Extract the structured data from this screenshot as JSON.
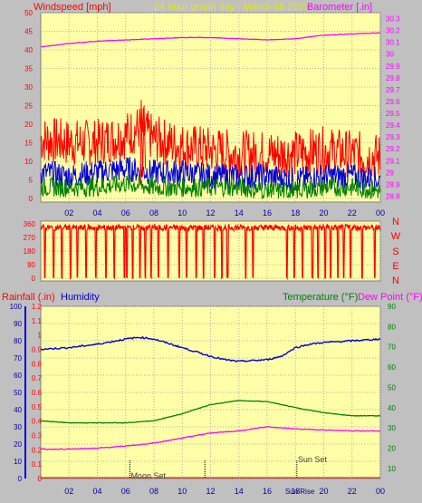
{
  "colors": {
    "background": "#c0c0c0",
    "plot_bg": "#ffffa8",
    "red": "#ff0000",
    "blue": "#0000dd",
    "green": "#008000",
    "magenta": "#ff00ff",
    "yellow_title": "#e8e800",
    "navy": "#0000a0",
    "black": "#000000"
  },
  "header": {
    "left_title": "Windspeed [mph]",
    "center_title": "24 hour graph day : March 08 2023",
    "right_title": "Barometer [.in]"
  },
  "middle": {
    "direction_labels": [
      "N",
      "W",
      "S",
      "E",
      "N"
    ]
  },
  "lower": {
    "rainfall_label": "Rainfall (.in)",
    "humidity_label": "Humidity",
    "temperature_label": "Temperature (°F)",
    "dewpoint_label": "Dew Point (°F)",
    "events": [
      {
        "label": "Moon Set",
        "hour": 6.3
      },
      {
        "label": "Sun Set",
        "hour": 18.1
      },
      {
        "label": "",
        "hour": 11.6
      }
    ],
    "sunrise_label": "Sun Rise"
  },
  "x_ticks": [
    "02",
    "04",
    "06",
    "08",
    "10",
    "12",
    "14",
    "16",
    "18",
    "20",
    "22",
    "00"
  ],
  "chart_data": [
    {
      "type": "line",
      "name": "wind-and-barometer",
      "x_range_hours": [
        0,
        24
      ],
      "y_left_ticks": [
        "0",
        "5",
        "10",
        "15",
        "20",
        "25",
        "30",
        "35",
        "40",
        "45",
        "50"
      ],
      "y_left_range": [
        0,
        50
      ],
      "y_right_ticks": [
        "28.8",
        "28.9",
        "29",
        "29.1",
        "29.2",
        "29.3",
        "29.4",
        "29.5",
        "29.6",
        "29.7",
        "29.8",
        "29.9",
        "30",
        "30.1",
        "30.2",
        "30.3"
      ],
      "y_right_range": [
        28.75,
        30.35
      ],
      "grid": true,
      "series": [
        {
          "name": "Windspeed [mph]",
          "color": "#ff0000",
          "axis": "left",
          "x": [
            0,
            2,
            4,
            6,
            7,
            8,
            10,
            12,
            14,
            16,
            18,
            20,
            22,
            24
          ],
          "values": [
            16,
            15,
            15,
            17,
            19,
            16,
            14,
            13,
            12,
            12,
            12,
            13,
            12,
            11
          ]
        },
        {
          "color": "#0000dd",
          "axis": "left",
          "x": [
            0,
            2,
            4,
            6,
            8,
            10,
            12,
            14,
            16,
            18,
            20,
            22,
            24
          ],
          "values": [
            7,
            6,
            7,
            8,
            7,
            7,
            6,
            6,
            6,
            5,
            6,
            6,
            5
          ]
        },
        {
          "color": "#008000",
          "axis": "left",
          "x": [
            0,
            2,
            4,
            6,
            8,
            10,
            12,
            14,
            16,
            18,
            20,
            22,
            24
          ],
          "values": [
            3,
            3,
            3,
            4,
            3,
            3,
            3,
            3,
            2,
            2,
            3,
            3,
            2
          ]
        },
        {
          "name": "Barometer [.in]",
          "color": "#ff00ff",
          "axis": "right",
          "x": [
            0,
            2,
            4,
            6,
            8,
            10,
            12,
            14,
            16,
            18,
            20,
            22,
            24
          ],
          "values": [
            30.06,
            30.09,
            30.11,
            30.12,
            30.13,
            30.14,
            30.14,
            30.13,
            30.12,
            30.13,
            30.16,
            30.17,
            30.18
          ]
        }
      ]
    },
    {
      "type": "line",
      "name": "wind-direction",
      "x_range_hours": [
        0,
        24
      ],
      "y_ticks": [
        "0",
        "90",
        "180",
        "270",
        "360"
      ],
      "y_range": [
        0,
        360
      ],
      "grid": true,
      "series": [
        {
          "color": "#ff0000",
          "x": [
            0,
            24
          ],
          "values": [
            335,
            335
          ],
          "dropouts_hours": [
            0.3,
            0.9,
            1.5,
            2.1,
            2.6,
            3.2,
            3.9,
            4.6,
            5.2,
            5.9,
            6.1,
            6.5,
            7.0,
            7.4,
            7.8,
            8.3,
            9.0,
            9.8,
            10.3,
            11.0,
            11.5,
            12.3,
            12.8,
            13.2,
            14.5,
            15.0,
            17.4,
            17.9,
            18.5,
            19.2,
            19.6,
            20.1,
            20.5,
            21.0,
            21.4,
            21.9,
            22.7,
            23.6
          ]
        }
      ]
    },
    {
      "type": "line",
      "name": "humidity-temperature-dewpoint",
      "x_range_hours": [
        0,
        24
      ],
      "y_humidity_ticks": [
        "0",
        "10",
        "20",
        "30",
        "40",
        "50",
        "60",
        "70",
        "80",
        "90",
        "100"
      ],
      "y_humidity_range": [
        0,
        100
      ],
      "y_rain_ticks": [
        "0",
        "0.1",
        "0.2",
        "0.3",
        "0.4",
        "0.5",
        "0.6",
        "0.7",
        "0.8",
        "0.9",
        "1",
        "1.1",
        "1.2"
      ],
      "y_rain_range": [
        0,
        1.2
      ],
      "y_temp_ticks": [
        "10",
        "20",
        "30",
        "40",
        "50",
        "60",
        "70",
        "80",
        "90"
      ],
      "y_temp_range": [
        5,
        90
      ],
      "grid": true,
      "series": [
        {
          "name": "Humidity",
          "color": "#0000dd",
          "axis": "humidity",
          "x": [
            0,
            2,
            4,
            6,
            7,
            8,
            10,
            12,
            13,
            14,
            16,
            17,
            18,
            19,
            20,
            22,
            24
          ],
          "values": [
            75,
            76,
            78,
            81,
            82,
            81,
            76,
            71,
            69,
            68,
            69,
            71,
            76,
            78,
            79,
            80,
            81
          ]
        },
        {
          "name": "Temperature (°F)",
          "color": "#008000",
          "axis": "temp",
          "x": [
            0,
            2,
            4,
            6,
            8,
            10,
            12,
            14,
            16,
            18,
            20,
            22,
            24
          ],
          "values": [
            33.5,
            32.5,
            32.5,
            32.5,
            33.5,
            37,
            41.5,
            43.5,
            43,
            40,
            37.5,
            36,
            36
          ]
        },
        {
          "name": "Dew Point (°F)",
          "color": "#ff00ff",
          "axis": "temp",
          "x": [
            0,
            2,
            4,
            6,
            8,
            10,
            12,
            14,
            16,
            18,
            20,
            22,
            24
          ],
          "values": [
            19.5,
            19.5,
            20,
            21,
            22.5,
            25,
            27.5,
            28.5,
            30.5,
            29.5,
            29,
            28.5,
            28.5
          ]
        },
        {
          "name": "Rainfall (.in)",
          "color": "#ff0000",
          "axis": "rain",
          "x": [
            0,
            24
          ],
          "values": [
            0,
            0
          ]
        }
      ]
    }
  ]
}
